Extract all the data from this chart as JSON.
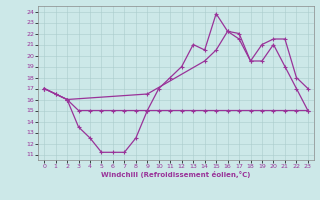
{
  "xlabel": "Windchill (Refroidissement éolien,°C)",
  "xlim": [
    -0.5,
    23.5
  ],
  "ylim": [
    10.5,
    24.5
  ],
  "xticks": [
    0,
    1,
    2,
    3,
    4,
    5,
    6,
    7,
    8,
    9,
    10,
    11,
    12,
    13,
    14,
    15,
    16,
    17,
    18,
    19,
    20,
    21,
    22,
    23
  ],
  "yticks": [
    11,
    12,
    13,
    14,
    15,
    16,
    17,
    18,
    19,
    20,
    21,
    22,
    23,
    24
  ],
  "line_color": "#993399",
  "bg_color": "#cce8e8",
  "grid_color": "#aacccc",
  "line1_x": [
    0,
    1,
    2,
    3,
    4,
    5,
    6,
    7,
    8,
    9,
    10,
    11,
    12,
    13,
    14,
    15,
    16,
    17,
    18,
    19,
    20,
    21,
    22,
    23
  ],
  "line1_y": [
    17.0,
    16.5,
    16.0,
    15.0,
    15.0,
    15.0,
    15.0,
    15.0,
    15.0,
    15.0,
    15.0,
    15.0,
    15.0,
    15.0,
    15.0,
    15.0,
    15.0,
    15.0,
    15.0,
    15.0,
    15.0,
    15.0,
    15.0,
    15.0
  ],
  "line2_x": [
    0,
    1,
    2,
    3,
    4,
    5,
    6,
    7,
    8,
    9,
    10,
    11,
    12,
    13,
    14,
    15,
    16,
    17,
    18,
    19,
    20,
    21,
    22,
    23
  ],
  "line2_y": [
    17.0,
    16.5,
    16.0,
    13.5,
    12.5,
    11.2,
    11.2,
    11.2,
    12.5,
    15.0,
    17.0,
    18.0,
    19.0,
    21.0,
    20.5,
    23.8,
    22.2,
    21.5,
    19.5,
    19.5,
    21.0,
    19.0,
    17.0,
    15.0
  ],
  "line3_x": [
    0,
    2,
    9,
    14,
    15,
    16,
    17,
    18,
    19,
    20,
    21,
    22,
    23
  ],
  "line3_y": [
    17.0,
    16.0,
    16.5,
    19.5,
    20.5,
    22.2,
    22.0,
    19.5,
    21.0,
    21.5,
    21.5,
    18.0,
    17.0
  ]
}
